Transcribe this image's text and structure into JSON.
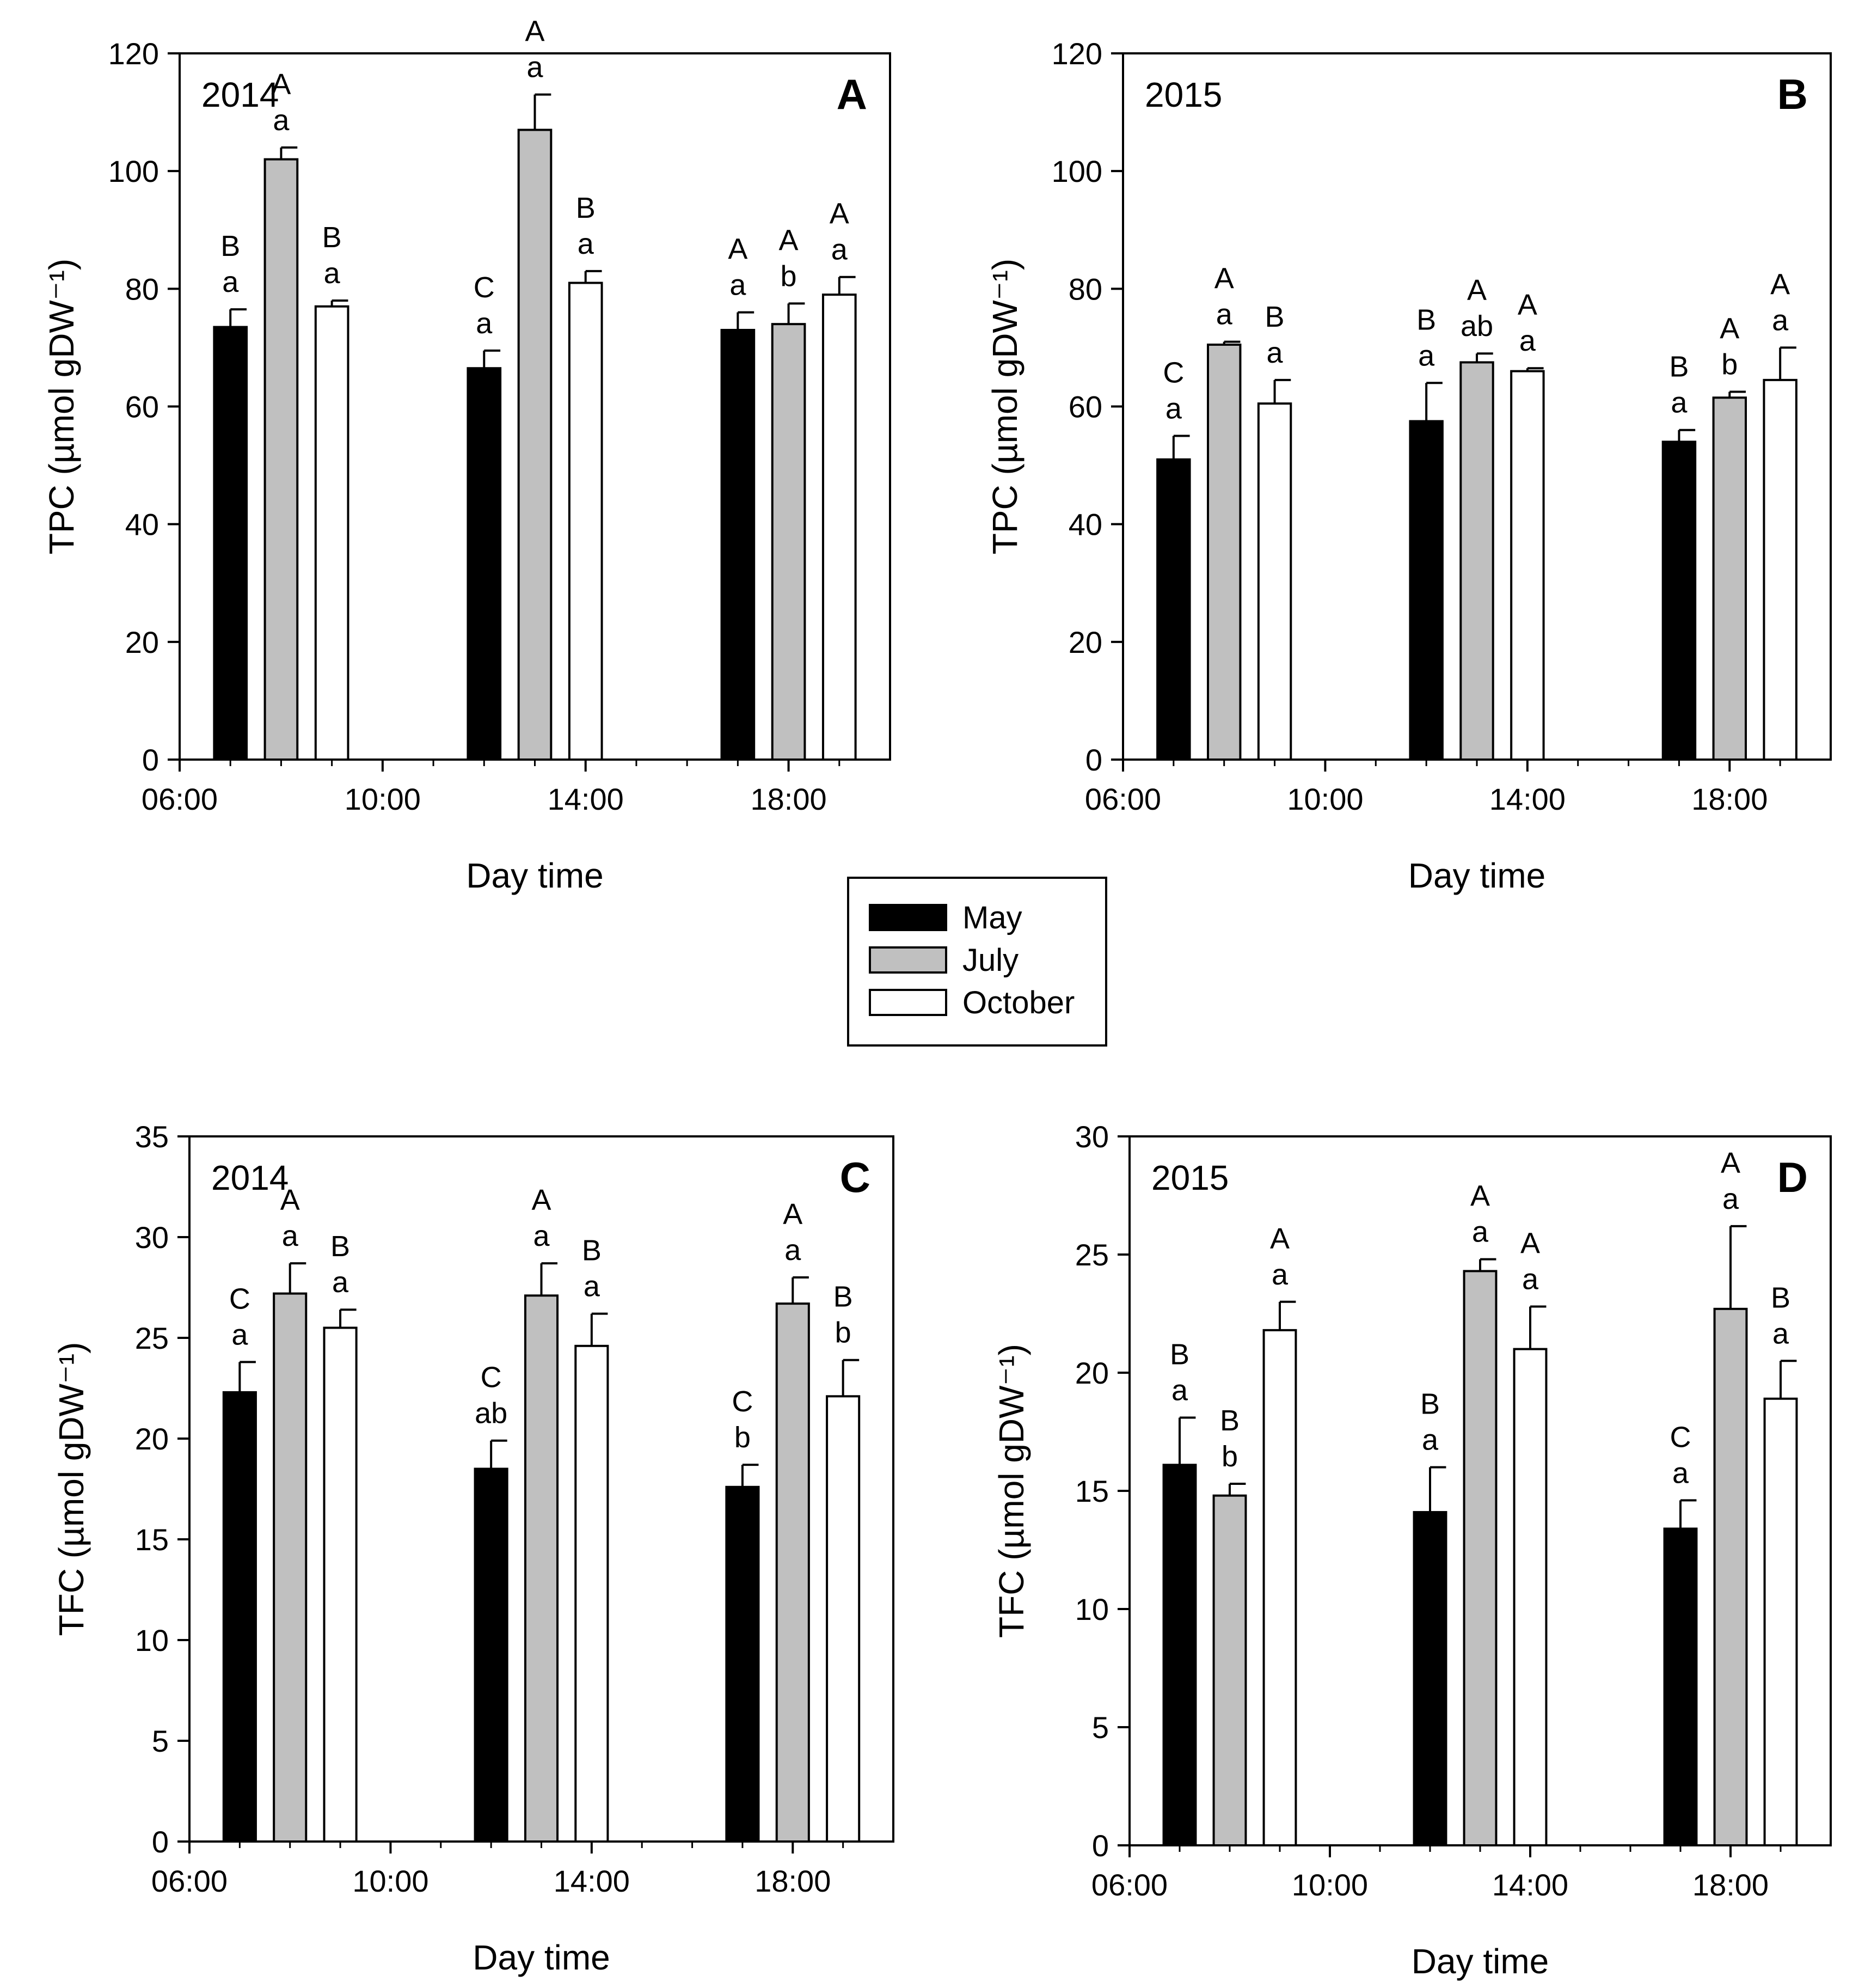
{
  "colors": {
    "may": "#000000",
    "july": "#c0c0c0",
    "october": "#ffffff",
    "axis": "#000000"
  },
  "legend": {
    "entries": [
      {
        "key": "may",
        "label": "May"
      },
      {
        "key": "july",
        "label": "July"
      },
      {
        "key": "october",
        "label": "October"
      }
    ]
  },
  "chart_data": [
    {
      "id": "A",
      "type": "bar",
      "panel_letter": "A",
      "year_label": "2014",
      "xlabel": "Day time",
      "ylabel": "TPC (µmol gDW⁻¹)",
      "ylim": [
        0,
        120
      ],
      "yticks": [
        0,
        20,
        40,
        60,
        80,
        100,
        120
      ],
      "xticks": [
        "06:00",
        "10:00",
        "14:00",
        "18:00"
      ],
      "categories": [
        "07:00",
        "12:00",
        "17:00"
      ],
      "series": [
        {
          "name": "May",
          "values": [
            73.5,
            66.5,
            73
          ],
          "errors": [
            3,
            3,
            3
          ],
          "letters": [
            [
              "B",
              "a"
            ],
            [
              "C",
              "a"
            ],
            [
              "A",
              "a"
            ]
          ]
        },
        {
          "name": "July",
          "values": [
            102,
            107,
            74
          ],
          "errors": [
            2,
            6,
            3.5
          ],
          "letters": [
            [
              "A",
              "a"
            ],
            [
              "A",
              "a"
            ],
            [
              "A",
              "b"
            ]
          ]
        },
        {
          "name": "October",
          "values": [
            77,
            81,
            79
          ],
          "errors": [
            1,
            2,
            3
          ],
          "letters": [
            [
              "B",
              "a"
            ],
            [
              "B",
              "a"
            ],
            [
              "A",
              "a"
            ]
          ]
        }
      ]
    },
    {
      "id": "B",
      "type": "bar",
      "panel_letter": "B",
      "year_label": "2015",
      "xlabel": "Day time",
      "ylabel": "TPC (µmol gDW⁻¹)",
      "ylim": [
        0,
        120
      ],
      "yticks": [
        0,
        20,
        40,
        60,
        80,
        100,
        120
      ],
      "xticks": [
        "06:00",
        "10:00",
        "14:00",
        "18:00"
      ],
      "categories": [
        "07:00",
        "12:00",
        "17:00"
      ],
      "series": [
        {
          "name": "May",
          "values": [
            51,
            57.5,
            54
          ],
          "errors": [
            4,
            6.5,
            2
          ],
          "letters": [
            [
              "C",
              "a"
            ],
            [
              "B",
              "a"
            ],
            [
              "B",
              "a"
            ]
          ]
        },
        {
          "name": "July",
          "values": [
            70.5,
            67.5,
            61.5
          ],
          "errors": [
            0.5,
            1.5,
            1
          ],
          "letters": [
            [
              "A",
              "a"
            ],
            [
              "A",
              "ab"
            ],
            [
              "A",
              "b"
            ]
          ]
        },
        {
          "name": "October",
          "values": [
            60.5,
            66,
            64.5
          ],
          "errors": [
            4,
            0.5,
            5.5
          ],
          "letters": [
            [
              "B",
              "a"
            ],
            [
              "A",
              "a"
            ],
            [
              "A",
              "a"
            ]
          ]
        }
      ]
    },
    {
      "id": "C",
      "type": "bar",
      "panel_letter": "C",
      "year_label": "2014",
      "xlabel": "Day time",
      "ylabel": "TFC (µmol gDW⁻¹)",
      "ylim": [
        0,
        35
      ],
      "yticks": [
        0,
        5,
        10,
        15,
        20,
        25,
        30,
        35
      ],
      "xticks": [
        "06:00",
        "10:00",
        "14:00",
        "18:00"
      ],
      "categories": [
        "07:00",
        "12:00",
        "17:00"
      ],
      "series": [
        {
          "name": "May",
          "values": [
            22.3,
            18.5,
            17.6
          ],
          "errors": [
            1.5,
            1.4,
            1.1
          ],
          "letters": [
            [
              "C",
              "a"
            ],
            [
              "C",
              "ab"
            ],
            [
              "C",
              "b"
            ]
          ]
        },
        {
          "name": "July",
          "values": [
            27.2,
            27.1,
            26.7
          ],
          "errors": [
            1.5,
            1.6,
            1.3
          ],
          "letters": [
            [
              "A",
              "a"
            ],
            [
              "A",
              "a"
            ],
            [
              "A",
              "a"
            ]
          ]
        },
        {
          "name": "October",
          "values": [
            25.5,
            24.6,
            22.1
          ],
          "errors": [
            0.9,
            1.6,
            1.8
          ],
          "letters": [
            [
              "B",
              "a"
            ],
            [
              "B",
              "a"
            ],
            [
              "B",
              "b"
            ]
          ]
        }
      ]
    },
    {
      "id": "D",
      "type": "bar",
      "panel_letter": "D",
      "year_label": "2015",
      "xlabel": "Day time",
      "ylabel": "TFC (µmol gDW⁻¹)",
      "ylim": [
        0,
        30
      ],
      "yticks": [
        0,
        5,
        10,
        15,
        20,
        25,
        30
      ],
      "xticks": [
        "06:00",
        "10:00",
        "14:00",
        "18:00"
      ],
      "categories": [
        "07:00",
        "12:00",
        "17:00"
      ],
      "series": [
        {
          "name": "May",
          "values": [
            16.1,
            14.1,
            13.4
          ],
          "errors": [
            2,
            1.9,
            1.2
          ],
          "letters": [
            [
              "B",
              "a"
            ],
            [
              "B",
              "a"
            ],
            [
              "C",
              "a"
            ]
          ]
        },
        {
          "name": "July",
          "values": [
            14.8,
            24.3,
            22.7
          ],
          "errors": [
            0.5,
            0.5,
            3.5
          ],
          "letters": [
            [
              "B",
              "b"
            ],
            [
              "A",
              "a"
            ],
            [
              "A",
              "a"
            ]
          ]
        },
        {
          "name": "October",
          "values": [
            21.8,
            21,
            18.9
          ],
          "errors": [
            1.2,
            1.8,
            1.6
          ],
          "letters": [
            [
              "A",
              "a"
            ],
            [
              "A",
              "a"
            ],
            [
              "B",
              "a"
            ]
          ]
        }
      ]
    }
  ]
}
